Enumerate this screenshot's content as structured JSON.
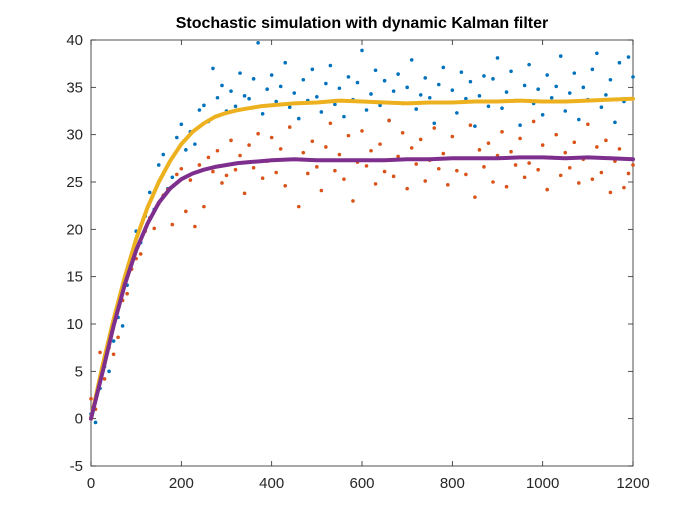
{
  "chart_data": {
    "type": "scatter",
    "title": "Stochastic simulation with dynamic Kalman filter",
    "xlabel": "",
    "ylabel": "",
    "xlim": [
      0,
      1200
    ],
    "ylim": [
      -5,
      40
    ],
    "xticks": [
      0,
      200,
      400,
      600,
      800,
      1000,
      1200
    ],
    "yticks": [
      -5,
      0,
      5,
      10,
      15,
      20,
      25,
      30,
      35,
      40
    ],
    "xtick_labels": [
      "0",
      "200",
      "400",
      "600",
      "800",
      "1000",
      "1200"
    ],
    "ytick_labels": [
      "-5",
      "0",
      "5",
      "10",
      "15",
      "20",
      "25",
      "30",
      "35",
      "40"
    ],
    "grid": false,
    "legend": "none",
    "series": [
      {
        "kind": "scatter",
        "color": "#0072BD",
        "x": [
          0,
          10,
          20,
          30,
          40,
          50,
          60,
          70,
          80,
          90,
          100,
          110,
          120,
          130,
          140,
          150,
          160,
          170,
          180,
          190,
          200,
          210,
          220,
          230,
          240,
          250,
          260,
          270,
          280,
          290,
          300,
          310,
          320,
          330,
          340,
          350,
          360,
          370,
          380,
          390,
          400,
          410,
          420,
          430,
          440,
          450,
          460,
          470,
          480,
          490,
          500,
          510,
          520,
          530,
          540,
          550,
          560,
          570,
          580,
          590,
          600,
          610,
          620,
          630,
          640,
          650,
          660,
          670,
          680,
          690,
          700,
          710,
          720,
          730,
          740,
          750,
          760,
          770,
          780,
          790,
          800,
          810,
          820,
          830,
          840,
          850,
          860,
          870,
          880,
          890,
          900,
          910,
          920,
          930,
          940,
          950,
          960,
          970,
          980,
          990,
          1000,
          1010,
          1020,
          1030,
          1040,
          1050,
          1060,
          1070,
          1080,
          1090,
          1100,
          1110,
          1120,
          1130,
          1140,
          1150,
          1160,
          1170,
          1180,
          1190,
          1200
        ],
        "y": [
          0.5,
          -0.4,
          3.2,
          5.5,
          5.0,
          8.2,
          10.7,
          9.8,
          14.1,
          16.3,
          19.8,
          18.6,
          21.4,
          23.9,
          22.1,
          26.8,
          27.9,
          24.3,
          25.5,
          29.7,
          31.1,
          28.4,
          30.3,
          29.0,
          32.6,
          33.1,
          31.4,
          37.0,
          33.9,
          35.2,
          32.5,
          34.6,
          33.0,
          36.5,
          34.1,
          33.8,
          35.9,
          39.7,
          32.2,
          34.8,
          36.3,
          33.5,
          35.1,
          37.6,
          32.9,
          34.4,
          31.7,
          35.8,
          33.6,
          36.9,
          34.0,
          32.4,
          35.4,
          37.3,
          33.2,
          34.9,
          31.9,
          36.1,
          33.7,
          35.5,
          38.9,
          32.6,
          34.3,
          36.8,
          33.1,
          35.7,
          31.5,
          34.6,
          36.4,
          33.3,
          35.0,
          37.9,
          32.7,
          34.2,
          36.0,
          33.9,
          31.2,
          35.3,
          37.1,
          33.4,
          34.7,
          32.3,
          36.6,
          33.8,
          35.6,
          30.9,
          34.1,
          36.2,
          33.0,
          35.9,
          38.1,
          32.8,
          34.5,
          36.7,
          33.6,
          31.0,
          35.2,
          37.4,
          33.3,
          34.8,
          32.1,
          36.3,
          33.9,
          35.1,
          38.3,
          32.5,
          34.4,
          36.5,
          31.6,
          35.0,
          33.7,
          36.9,
          38.6,
          32.9,
          34.2,
          35.8,
          31.3,
          37.6,
          33.5,
          38.2,
          36.1
        ]
      },
      {
        "kind": "scatter",
        "color": "#D95319",
        "x": [
          0,
          10,
          20,
          30,
          40,
          50,
          60,
          70,
          80,
          90,
          100,
          110,
          120,
          130,
          140,
          150,
          160,
          170,
          180,
          190,
          200,
          210,
          220,
          230,
          240,
          250,
          260,
          270,
          280,
          290,
          300,
          310,
          320,
          330,
          340,
          350,
          360,
          370,
          380,
          390,
          400,
          410,
          420,
          430,
          440,
          450,
          460,
          470,
          480,
          490,
          500,
          510,
          520,
          530,
          540,
          550,
          560,
          570,
          580,
          590,
          600,
          610,
          620,
          630,
          640,
          650,
          660,
          670,
          680,
          690,
          700,
          710,
          720,
          730,
          740,
          750,
          760,
          770,
          780,
          790,
          800,
          810,
          820,
          830,
          840,
          850,
          860,
          870,
          880,
          890,
          900,
          910,
          920,
          930,
          940,
          950,
          960,
          970,
          980,
          990,
          1000,
          1010,
          1020,
          1030,
          1040,
          1050,
          1060,
          1070,
          1080,
          1090,
          1100,
          1110,
          1120,
          1130,
          1140,
          1150,
          1160,
          1170,
          1180,
          1190,
          1200
        ],
        "y": [
          2.1,
          1.0,
          7.0,
          4.2,
          7.5,
          6.8,
          8.6,
          12.5,
          13.2,
          15.8,
          16.9,
          17.4,
          19.8,
          21.2,
          20.1,
          22.7,
          23.6,
          24.2,
          20.5,
          25.8,
          26.4,
          21.9,
          25.2,
          20.3,
          26.8,
          22.4,
          27.6,
          26.1,
          28.3,
          24.9,
          25.7,
          29.4,
          26.3,
          27.8,
          23.8,
          28.9,
          26.5,
          30.1,
          25.4,
          27.2,
          29.7,
          26.0,
          28.5,
          24.6,
          30.8,
          27.4,
          22.4,
          28.1,
          25.9,
          29.3,
          26.6,
          24.1,
          28.7,
          31.2,
          26.2,
          27.9,
          25.3,
          29.9,
          23.0,
          27.1,
          30.4,
          26.7,
          28.3,
          24.8,
          29.0,
          26.1,
          31.5,
          25.6,
          27.7,
          30.2,
          24.3,
          28.6,
          26.9,
          29.5,
          25.1,
          27.3,
          30.7,
          26.4,
          28.0,
          24.7,
          29.8,
          26.2,
          27.5,
          25.8,
          31.0,
          23.4,
          28.4,
          26.6,
          29.1,
          25.0,
          27.8,
          30.3,
          24.5,
          28.2,
          26.8,
          29.6,
          25.5,
          27.0,
          31.4,
          26.3,
          28.9,
          24.2,
          27.6,
          30.0,
          25.7,
          28.1,
          26.5,
          29.2,
          24.9,
          27.4,
          31.1,
          25.3,
          28.7,
          26.0,
          29.4,
          23.9,
          27.2,
          28.5,
          24.4,
          25.9,
          26.8
        ]
      },
      {
        "kind": "line",
        "color": "#EDB120",
        "x": [
          0,
          25,
          50,
          75,
          100,
          125,
          150,
          175,
          200,
          225,
          250,
          275,
          300,
          325,
          350,
          375,
          400,
          450,
          500,
          550,
          600,
          650,
          700,
          750,
          800,
          850,
          900,
          950,
          1000,
          1050,
          1100,
          1150,
          1200
        ],
        "y": [
          0,
          5.5,
          10.5,
          15.0,
          19.0,
          22.3,
          25.0,
          27.2,
          29.0,
          30.3,
          31.2,
          31.9,
          32.3,
          32.6,
          32.8,
          33.0,
          33.1,
          33.3,
          33.4,
          33.6,
          33.5,
          33.4,
          33.3,
          33.4,
          33.4,
          33.5,
          33.5,
          33.6,
          33.5,
          33.5,
          33.6,
          33.7,
          33.8
        ]
      },
      {
        "kind": "line",
        "color": "#7E2F8E",
        "x": [
          0,
          25,
          50,
          75,
          100,
          125,
          150,
          175,
          200,
          225,
          250,
          275,
          300,
          325,
          350,
          375,
          400,
          450,
          500,
          550,
          600,
          650,
          700,
          750,
          800,
          850,
          900,
          950,
          1000,
          1050,
          1100,
          1150,
          1200
        ],
        "y": [
          0,
          4.8,
          9.8,
          14.2,
          17.8,
          20.6,
          22.8,
          24.3,
          25.3,
          25.9,
          26.3,
          26.6,
          26.8,
          27.0,
          27.1,
          27.2,
          27.3,
          27.4,
          27.3,
          27.3,
          27.3,
          27.3,
          27.4,
          27.4,
          27.5,
          27.5,
          27.5,
          27.6,
          27.6,
          27.5,
          27.6,
          27.5,
          27.4
        ]
      }
    ]
  }
}
